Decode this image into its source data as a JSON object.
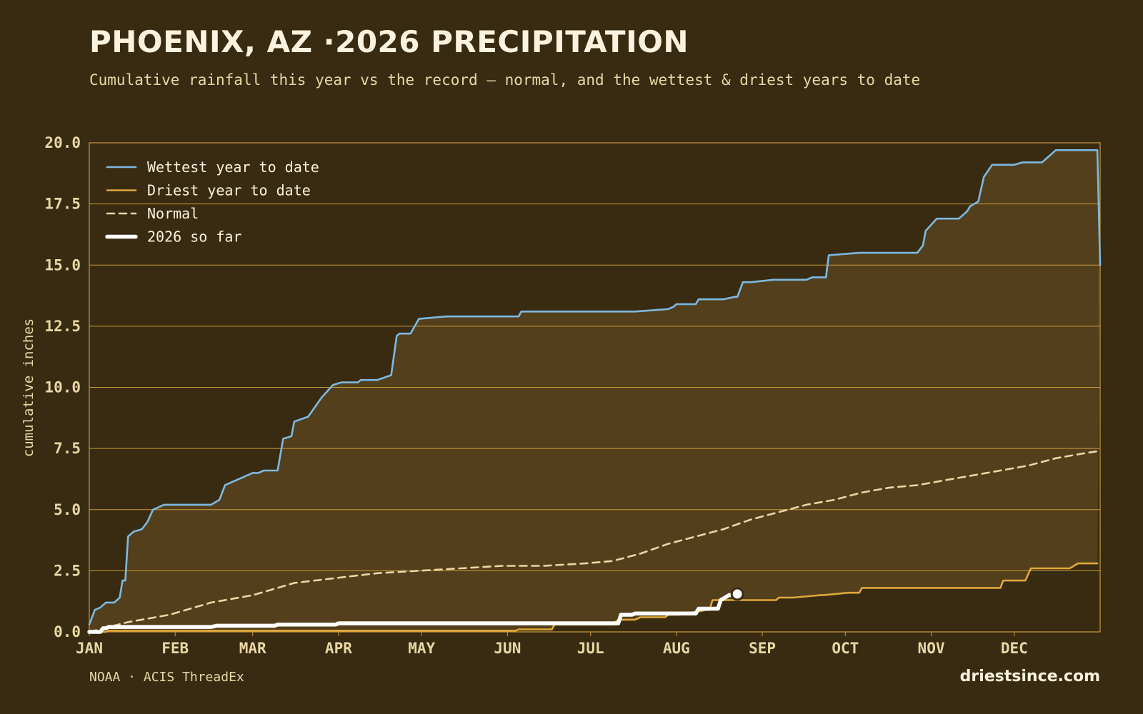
{
  "header": {
    "title": "PHOENIX, AZ ·2026 PRECIPITATION",
    "subtitle": "Cumulative rainfall this year vs the record — normal, and the wettest & driest years to date"
  },
  "footer": {
    "source": "NOAA · ACIS ThreadEx",
    "brand": "driestsince.com"
  },
  "colors": {
    "background": "#382b12",
    "band_fill": "#533f1c",
    "grid": "#c99a3a",
    "wettest": "#7db9e0",
    "driest": "#e0a83a",
    "normal": "#e9d7a6",
    "current": "#ffffff",
    "text": "#e9d7a6"
  },
  "chart_data": {
    "type": "line",
    "title": "",
    "xlabel": "",
    "ylabel": "cumulative inches",
    "xlim": [
      1,
      366
    ],
    "ylim": [
      0,
      20
    ],
    "yticks": [
      "0.0",
      "2.5",
      "5.0",
      "7.5",
      "10.0",
      "12.5",
      "15.0",
      "17.5",
      "20.0"
    ],
    "yticks_values": [
      0,
      2.5,
      5,
      7.5,
      10,
      12.5,
      15,
      17.5,
      20
    ],
    "xticks": [
      {
        "label": "JAN",
        "day": 1
      },
      {
        "label": "FEB",
        "day": 32
      },
      {
        "label": "MAR",
        "day": 60
      },
      {
        "label": "APR",
        "day": 91
      },
      {
        "label": "MAY",
        "day": 121
      },
      {
        "label": "JUN",
        "day": 152
      },
      {
        "label": "JUL",
        "day": 182
      },
      {
        "label": "AUG",
        "day": 213
      },
      {
        "label": "SEP",
        "day": 244
      },
      {
        "label": "OCT",
        "day": 274
      },
      {
        "label": "NOV",
        "day": 305
      },
      {
        "label": "DEC",
        "day": 335
      }
    ],
    "grid": true,
    "legend_position": "top-left",
    "shaded_band": "between driest and wettest year to date",
    "series": [
      {
        "name": "Wettest year to date",
        "style": "solid",
        "x": [
          1,
          3,
          5,
          7,
          10,
          12,
          13,
          14,
          15,
          17,
          20,
          22,
          24,
          28,
          31,
          35,
          40,
          45,
          48,
          50,
          52,
          58,
          60,
          62,
          64,
          66,
          69,
          71,
          74,
          75,
          80,
          85,
          89,
          92,
          98,
          99,
          100,
          105,
          110,
          112,
          113,
          117,
          120,
          130,
          140,
          152,
          156,
          157,
          160,
          170,
          180,
          190,
          198,
          210,
          212,
          213,
          214,
          220,
          221,
          230,
          234,
          235,
          237,
          238,
          240,
          248,
          260,
          262,
          267,
          268,
          279,
          281,
          282,
          287,
          290,
          300,
          302,
          303,
          307,
          315,
          318,
          319,
          322,
          324,
          327,
          328,
          335,
          338,
          345,
          347,
          350,
          363,
          364,
          365,
          366
        ],
        "y": [
          0.3,
          0.9,
          1.0,
          1.2,
          1.2,
          1.4,
          2.1,
          2.1,
          3.9,
          4.1,
          4.2,
          4.5,
          5.0,
          5.2,
          5.2,
          5.2,
          5.2,
          5.2,
          5.4,
          6.0,
          6.1,
          6.4,
          6.5,
          6.5,
          6.6,
          6.6,
          6.6,
          7.9,
          8.0,
          8.6,
          8.8,
          9.6,
          10.1,
          10.2,
          10.2,
          10.3,
          10.3,
          10.3,
          10.5,
          12.1,
          12.2,
          12.2,
          12.8,
          12.9,
          12.9,
          12.9,
          12.9,
          13.1,
          13.1,
          13.1,
          13.1,
          13.1,
          13.1,
          13.2,
          13.3,
          13.4,
          13.4,
          13.4,
          13.6,
          13.6,
          13.7,
          13.7,
          14.3,
          14.3,
          14.3,
          14.4,
          14.4,
          14.5,
          14.5,
          15.4,
          15.5,
          15.5,
          15.5,
          15.5,
          15.5,
          15.5,
          15.8,
          16.4,
          16.9,
          16.9,
          17.2,
          17.4,
          17.6,
          18.6,
          19.1,
          19.1,
          19.1,
          19.2,
          19.2,
          19.4,
          19.7,
          19.7,
          19.7,
          19.7,
          15.0
        ]
      },
      {
        "name": "Driest year to date",
        "style": "solid",
        "x": [
          1,
          7,
          8,
          155,
          156,
          168,
          169,
          190,
          192,
          198,
          200,
          209,
          210,
          214,
          224,
          225,
          226,
          249,
          250,
          255,
          265,
          266,
          275,
          279,
          280,
          320,
          330,
          331,
          339,
          341,
          355,
          358,
          365
        ],
        "y": [
          0.0,
          0.0,
          0.05,
          0.05,
          0.1,
          0.1,
          0.3,
          0.3,
          0.5,
          0.5,
          0.6,
          0.6,
          0.7,
          0.7,
          0.9,
          0.9,
          1.3,
          1.3,
          1.4,
          1.4,
          1.5,
          1.5,
          1.6,
          1.6,
          1.8,
          1.8,
          1.8,
          2.1,
          2.1,
          2.6,
          2.6,
          2.8,
          2.8
        ]
      },
      {
        "name": "Normal",
        "style": "dashed",
        "x": [
          1,
          15,
          30,
          45,
          60,
          75,
          90,
          105,
          120,
          135,
          150,
          165,
          180,
          190,
          200,
          210,
          220,
          230,
          240,
          250,
          260,
          270,
          280,
          290,
          300,
          310,
          320,
          330,
          340,
          350,
          360,
          366
        ],
        "y": [
          0.0,
          0.4,
          0.7,
          1.2,
          1.5,
          2.0,
          2.2,
          2.4,
          2.5,
          2.6,
          2.7,
          2.7,
          2.8,
          2.9,
          3.2,
          3.6,
          3.9,
          4.2,
          4.6,
          4.9,
          5.2,
          5.4,
          5.7,
          5.9,
          6.0,
          6.2,
          6.4,
          6.6,
          6.8,
          7.1,
          7.3,
          7.4
        ]
      },
      {
        "name": "2026 so far",
        "style": "thick",
        "x": [
          1,
          5,
          6,
          7,
          8,
          45,
          47,
          68,
          69,
          90,
          91,
          192,
          193,
          197,
          198,
          220,
          221,
          228,
          229,
          232,
          235
        ],
        "y": [
          0.0,
          0.0,
          0.15,
          0.15,
          0.2,
          0.2,
          0.25,
          0.25,
          0.3,
          0.3,
          0.35,
          0.35,
          0.7,
          0.7,
          0.75,
          0.75,
          0.95,
          0.95,
          1.3,
          1.5,
          1.55
        ]
      }
    ]
  }
}
